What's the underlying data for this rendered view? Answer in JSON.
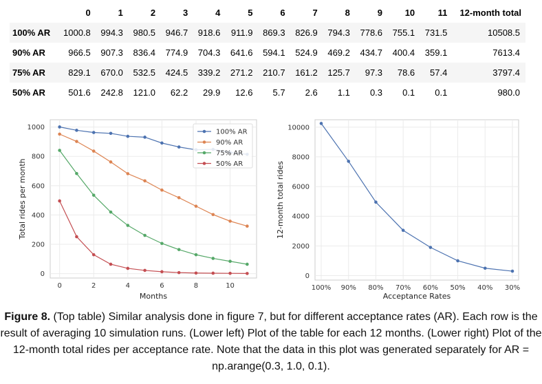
{
  "table": {
    "columns": [
      "",
      "0",
      "1",
      "2",
      "3",
      "4",
      "5",
      "6",
      "7",
      "8",
      "9",
      "10",
      "11",
      "12-month total"
    ],
    "rows": [
      {
        "label": "100% AR",
        "values": [
          "1000.8",
          "994.3",
          "980.5",
          "946.7",
          "918.6",
          "911.9",
          "869.3",
          "826.9",
          "794.3",
          "778.6",
          "755.1",
          "731.5",
          "10508.5"
        ]
      },
      {
        "label": "90% AR",
        "values": [
          "966.5",
          "907.3",
          "836.4",
          "774.9",
          "704.3",
          "641.6",
          "594.1",
          "524.9",
          "469.2",
          "434.7",
          "400.4",
          "359.1",
          "7613.4"
        ]
      },
      {
        "label": "75% AR",
        "values": [
          "829.1",
          "670.0",
          "532.5",
          "424.5",
          "339.2",
          "271.2",
          "210.7",
          "161.2",
          "125.7",
          "97.3",
          "78.6",
          "57.4",
          "3797.4"
        ]
      },
      {
        "label": "50% AR",
        "values": [
          "501.6",
          "242.8",
          "121.0",
          "62.2",
          "29.9",
          "12.6",
          "5.7",
          "2.6",
          "1.1",
          "0.3",
          "0.1",
          "0.1",
          "980.0"
        ]
      }
    ]
  },
  "chart_data": [
    {
      "type": "line",
      "xlabel": "Months",
      "ylabel": "Total rides per month",
      "xlim": [
        -0.55,
        11.55
      ],
      "ylim": [
        -30,
        1050
      ],
      "xticks": [
        0,
        2,
        4,
        6,
        8,
        10
      ],
      "yticks": [
        0,
        200,
        400,
        600,
        800,
        1000
      ],
      "grid": true,
      "legend_position": "top-right",
      "x": [
        0,
        1,
        2,
        3,
        4,
        5,
        6,
        7,
        8,
        9,
        10,
        11
      ],
      "series": [
        {
          "name": "100% AR",
          "color": "#4c72b0",
          "values": [
            1000.8,
            978,
            963,
            957,
            937,
            931,
            891,
            864,
            845,
            848,
            827,
            814
          ]
        },
        {
          "name": "90% AR",
          "color": "#dd8452",
          "values": [
            952,
            902,
            836,
            762,
            682,
            633,
            570,
            518,
            460,
            403,
            358,
            324
          ]
        },
        {
          "name": "75% AR",
          "color": "#55a868",
          "values": [
            841,
            683,
            535,
            420,
            329,
            261,
            206,
            164,
            129,
            104,
            84,
            64
          ]
        },
        {
          "name": "50% AR",
          "color": "#c44e52",
          "values": [
            496,
            252,
            129,
            64,
            36,
            22,
            13,
            7,
            4,
            3,
            2,
            1
          ]
        }
      ]
    },
    {
      "type": "line",
      "xlabel": "Acceptance Rates",
      "ylabel": "12-month total rides",
      "ylim": [
        -300,
        10500
      ],
      "yticks": [
        0,
        2000,
        4000,
        6000,
        8000,
        10000
      ],
      "grid": true,
      "categories": [
        "100%",
        "90%",
        "80%",
        "70%",
        "60%",
        "50%",
        "40%",
        "30%"
      ],
      "series": [
        {
          "color": "#4c72b0",
          "values": [
            10250,
            7700,
            4950,
            3050,
            1900,
            1000,
            500,
            300
          ]
        }
      ]
    }
  ],
  "caption": {
    "figure_label": "Figure 8.",
    "text": " (Top table) Similar analysis done in figure 7, but for different acceptance rates (AR). Each row is the result of averaging 10 simulation runs. (Lower left) Plot of the table for each 12 months. (Lower right) Plot of the 12-month total rides per acceptance rate. Note that the data in this plot was generated separately for AR = np.arange(0.3, 1.0, 0.1)."
  }
}
